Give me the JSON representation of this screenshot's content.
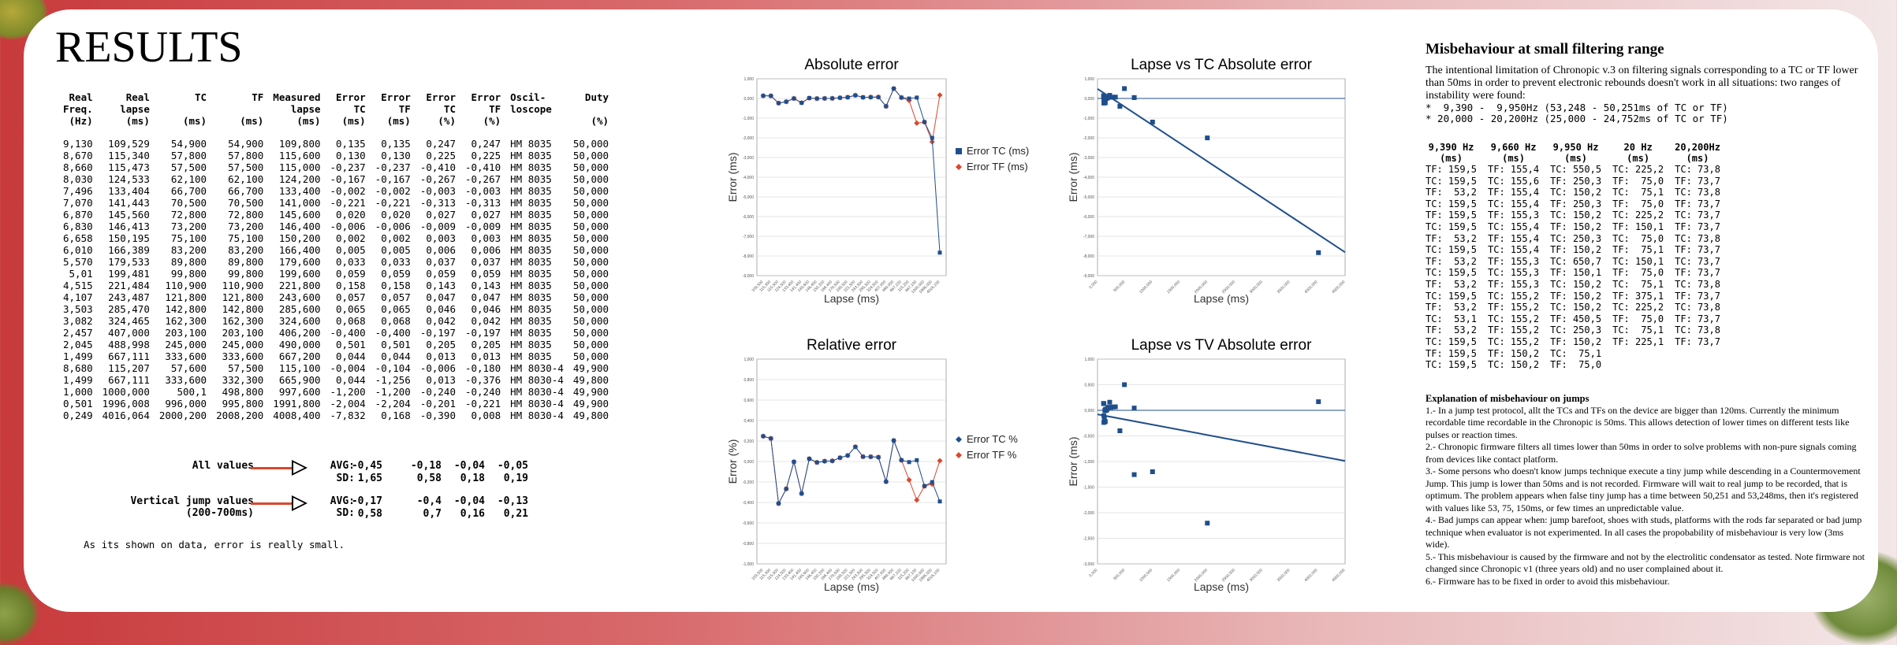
{
  "title": "RESULTS",
  "results": {
    "headers": [
      [
        "Real",
        "Freq.",
        "(Hz)"
      ],
      [
        "Real",
        "lapse",
        "(ms)"
      ],
      [
        "TC",
        "",
        "(ms)"
      ],
      [
        "TF",
        "",
        "(ms)"
      ],
      [
        "Measured",
        "lapse",
        "(ms)"
      ],
      [
        "Error",
        "TC",
        "(ms)"
      ],
      [
        "Error",
        "TF",
        "(ms)"
      ],
      [
        "Error",
        "TC",
        "(%)"
      ],
      [
        "Error",
        "TF",
        "(%)"
      ],
      [
        "Oscil-",
        "loscope",
        ""
      ],
      [
        "Duty",
        "",
        "(%)"
      ]
    ],
    "rows": [
      [
        "9,130",
        "109,529",
        "54,900",
        "54,900",
        "109,800",
        "0,135",
        "0,135",
        "0,247",
        "0,247",
        "HM 8035",
        "50,000"
      ],
      [
        "8,670",
        "115,340",
        "57,800",
        "57,800",
        "115,600",
        "0,130",
        "0,130",
        "0,225",
        "0,225",
        "HM 8035",
        "50,000"
      ],
      [
        "8,660",
        "115,473",
        "57,500",
        "57,500",
        "115,000",
        "-0,237",
        "-0,237",
        "-0,410",
        "-0,410",
        "HM 8035",
        "50,000"
      ],
      [
        "8,030",
        "124,533",
        "62,100",
        "62,100",
        "124,200",
        "-0,167",
        "-0,167",
        "-0,267",
        "-0,267",
        "HM 8035",
        "50,000"
      ],
      [
        "7,496",
        "133,404",
        "66,700",
        "66,700",
        "133,400",
        "-0,002",
        "-0,002",
        "-0,003",
        "-0,003",
        "HM 8035",
        "50,000"
      ],
      [
        "7,070",
        "141,443",
        "70,500",
        "70,500",
        "141,000",
        "-0,221",
        "-0,221",
        "-0,313",
        "-0,313",
        "HM 8035",
        "50,000"
      ],
      [
        "6,870",
        "145,560",
        "72,800",
        "72,800",
        "145,600",
        "0,020",
        "0,020",
        "0,027",
        "0,027",
        "HM 8035",
        "50,000"
      ],
      [
        "6,830",
        "146,413",
        "73,200",
        "73,200",
        "146,400",
        "-0,006",
        "-0,006",
        "-0,009",
        "-0,009",
        "HM 8035",
        "50,000"
      ],
      [
        "6,658",
        "150,195",
        "75,100",
        "75,100",
        "150,200",
        "0,002",
        "0,002",
        "0,003",
        "0,003",
        "HM 8035",
        "50,000"
      ],
      [
        "6,010",
        "166,389",
        "83,200",
        "83,200",
        "166,400",
        "0,005",
        "0,005",
        "0,006",
        "0,006",
        "HM 8035",
        "50,000"
      ],
      [
        "5,570",
        "179,533",
        "89,800",
        "89,800",
        "179,600",
        "0,033",
        "0,033",
        "0,037",
        "0,037",
        "HM 8035",
        "50,000"
      ],
      [
        "5,01",
        "199,481",
        "99,800",
        "99,800",
        "199,600",
        "0,059",
        "0,059",
        "0,059",
        "0,059",
        "HM 8035",
        "50,000"
      ],
      [
        "4,515",
        "221,484",
        "110,900",
        "110,900",
        "221,800",
        "0,158",
        "0,158",
        "0,143",
        "0,143",
        "HM 8035",
        "50,000"
      ],
      [
        "4,107",
        "243,487",
        "121,800",
        "121,800",
        "243,600",
        "0,057",
        "0,057",
        "0,047",
        "0,047",
        "HM 8035",
        "50,000"
      ],
      [
        "3,503",
        "285,470",
        "142,800",
        "142,800",
        "285,600",
        "0,065",
        "0,065",
        "0,046",
        "0,046",
        "HM 8035",
        "50,000"
      ],
      [
        "3,082",
        "324,465",
        "162,300",
        "162,300",
        "324,600",
        "0,068",
        "0,068",
        "0,042",
        "0,042",
        "HM 8035",
        "50,000"
      ],
      [
        "2,457",
        "407,000",
        "203,100",
        "203,100",
        "406,200",
        "-0,400",
        "-0,400",
        "-0,197",
        "-0,197",
        "HM 8035",
        "50,000"
      ],
      [
        "2,045",
        "488,998",
        "245,000",
        "245,000",
        "490,000",
        "0,501",
        "0,501",
        "0,205",
        "0,205",
        "HM 8035",
        "50,000"
      ],
      [
        "1,499",
        "667,111",
        "333,600",
        "333,600",
        "667,200",
        "0,044",
        "0,044",
        "0,013",
        "0,013",
        "HM 8035",
        "50,000"
      ],
      [
        "8,680",
        "115,207",
        "57,600",
        "57,500",
        "115,100",
        "-0,004",
        "-0,104",
        "-0,006",
        "-0,180",
        "HM 8030-4",
        "49,900"
      ],
      [
        "1,499",
        "667,111",
        "333,600",
        "332,300",
        "665,900",
        "0,044",
        "-1,256",
        "0,013",
        "-0,376",
        "HM 8030-4",
        "49,800"
      ],
      [
        "1,000",
        "1000,000",
        "500,1",
        "498,800",
        "997,600",
        "-1,200",
        "-1,200",
        "-0,240",
        "-0,240",
        "HM 8030-4",
        "49,900"
      ],
      [
        "0,501",
        "1996,008",
        "996,000",
        "995,800",
        "1991,800",
        "-2,004",
        "-2,204",
        "-0,201",
        "-0,221",
        "HM 8030-4",
        "49,900"
      ],
      [
        "0,249",
        "4016,064",
        "2000,200",
        "2008,200",
        "4008,400",
        "-7,832",
        "0,168",
        "-0,390",
        "0,008",
        "HM 8030-4",
        "49,800"
      ]
    ]
  },
  "stats": {
    "all_label": "All values",
    "vert_label_1": "Vertical jump values",
    "vert_label_2": "(200-700ms)",
    "avg": "AVG:",
    "sd": "SD:",
    "all_avg": [
      "-0,45",
      "-0,18",
      "-0,04",
      "-0,05"
    ],
    "all_sd": [
      "1,65",
      "0,58",
      "0,18",
      "0,19"
    ],
    "vert_avg": [
      "-0,17",
      "-0,4",
      "-0,04",
      "-0,13"
    ],
    "vert_sd": [
      "0,58",
      "0,7",
      "0,16",
      "0,21"
    ]
  },
  "note": "As its shown on data, error is really small.",
  "chart_data": [
    {
      "type": "line",
      "title": "Absolute error",
      "xlabel": "Lapse (ms)",
      "ylabel": "Error (ms)",
      "ylim": [
        -9,
        1
      ],
      "x": [
        109.5,
        115.3,
        115.5,
        124.5,
        133.4,
        141.4,
        145.6,
        146.4,
        150.2,
        166.4,
        179.5,
        199.5,
        221.5,
        243.5,
        285.5,
        324.5,
        407,
        489,
        667.1,
        115.2,
        667.1,
        1000,
        1996,
        4016.1
      ],
      "series": [
        {
          "name": "Error TC (ms)",
          "values": [
            0.135,
            0.13,
            -0.237,
            -0.167,
            -0.002,
            -0.221,
            0.02,
            -0.006,
            0.002,
            0.005,
            0.033,
            0.059,
            0.158,
            0.057,
            0.065,
            0.068,
            -0.4,
            0.501,
            0.044,
            -0.004,
            0.044,
            -1.2,
            -2.004,
            -7.832
          ]
        },
        {
          "name": "Error TF (ms)",
          "values": [
            0.135,
            0.13,
            -0.237,
            -0.167,
            -0.002,
            -0.221,
            0.02,
            -0.006,
            0.002,
            0.005,
            0.033,
            0.059,
            0.158,
            0.057,
            0.065,
            0.068,
            -0.4,
            0.501,
            0.044,
            -0.104,
            -1.256,
            -1.2,
            -2.204,
            0.168
          ]
        }
      ],
      "colors": {
        "tc": "#1f4e8c",
        "tf": "#d9482f"
      }
    },
    {
      "type": "line",
      "title": "Relative error",
      "xlabel": "Lapse (ms)",
      "ylabel": "Error (%)",
      "ylim": [
        -1,
        1
      ],
      "x": [
        109.5,
        115.3,
        115.5,
        124.5,
        133.4,
        141.4,
        145.6,
        146.4,
        150.2,
        166.4,
        179.5,
        199.5,
        221.5,
        243.5,
        285.5,
        324.5,
        407,
        489,
        667.1,
        115.2,
        667.1,
        1000,
        1996,
        4016.1
      ],
      "series": [
        {
          "name": "Error TC %",
          "values": [
            0.247,
            0.225,
            -0.41,
            -0.267,
            -0.003,
            -0.313,
            0.027,
            -0.009,
            0.003,
            0.006,
            0.037,
            0.059,
            0.143,
            0.047,
            0.046,
            0.042,
            -0.197,
            0.205,
            0.013,
            -0.006,
            0.013,
            -0.24,
            -0.201,
            -0.39
          ]
        },
        {
          "name": "Error TF %",
          "values": [
            0.247,
            0.225,
            -0.41,
            -0.267,
            -0.003,
            -0.313,
            0.027,
            -0.009,
            0.003,
            0.006,
            0.037,
            0.059,
            0.143,
            0.047,
            0.046,
            0.042,
            -0.197,
            0.205,
            0.013,
            -0.18,
            -0.376,
            -0.24,
            -0.221,
            0.008
          ]
        }
      ],
      "colors": {
        "tc": "#1f4e8c",
        "tf": "#d9482f"
      }
    },
    {
      "type": "scatter",
      "title": "Lapse vs TC Absolute error",
      "xlabel": "Lapse (ms)",
      "ylabel": "Error (ms)",
      "xlim": [
        0,
        4500
      ],
      "ylim": [
        -9,
        1
      ],
      "x": [
        109.5,
        115.3,
        115.5,
        124.5,
        133.4,
        141.4,
        145.6,
        146.4,
        150.2,
        166.4,
        179.5,
        199.5,
        221.5,
        243.5,
        285.5,
        324.5,
        407,
        489,
        667.1,
        115.2,
        667.1,
        1000,
        1996,
        4016.1
      ],
      "values": [
        0.135,
        0.13,
        -0.237,
        -0.167,
        -0.002,
        -0.221,
        0.02,
        -0.006,
        0.002,
        0.005,
        0.033,
        0.059,
        0.158,
        0.057,
        0.065,
        0.068,
        -0.4,
        0.501,
        0.044,
        -0.004,
        0.044,
        -1.2,
        -2.004,
        -7.832
      ],
      "color": "#1f4e8c"
    },
    {
      "type": "scatter",
      "title": "Lapse vs TV Absolute error",
      "xlabel": "Lapse (ms)",
      "ylabel": "Error (ms)",
      "xlim": [
        0,
        4500
      ],
      "ylim": [
        -3,
        1
      ],
      "x": [
        109.5,
        115.3,
        115.5,
        124.5,
        133.4,
        141.4,
        145.6,
        146.4,
        150.2,
        166.4,
        179.5,
        199.5,
        221.5,
        243.5,
        285.5,
        324.5,
        407,
        489,
        667.1,
        115.2,
        667.1,
        1000,
        1996,
        4016.1
      ],
      "values": [
        0.135,
        0.13,
        -0.237,
        -0.167,
        -0.002,
        -0.221,
        0.02,
        -0.006,
        0.002,
        0.005,
        0.033,
        0.059,
        0.158,
        0.057,
        0.065,
        0.068,
        -0.4,
        0.501,
        0.044,
        -0.104,
        -1.256,
        -1.2,
        -2.204,
        0.168
      ],
      "color": "#1f4e8c"
    }
  ],
  "misbehaviour": {
    "heading": "Misbehaviour at small filtering range",
    "intro": "The intentional limitation of Chronopic v.3 on filtering signals corresponding to a TC or TF lower than 50ms in order to prevent electronic rebounds doesn't work in all situations: two ranges of instability were found:",
    "ranges": "*  9,390 -  9,950Hz (53,248 - 50,251ms of TC or TF)\n* 20,000 - 20,200Hz (25,000 - 24,752ms of TC or TF)",
    "columns": [
      {
        "head": "9,390 Hz\n(ms)",
        "cells": [
          "TF: 159,5",
          "TC: 159,5",
          "TF:  53,2",
          "TC: 159,5",
          "TF: 159,5",
          "TC: 159,5",
          "TF:  53,2",
          "TC: 159,5",
          "TF:  53,2",
          "TC: 159,5",
          "TF:  53,2",
          "TC: 159,5",
          "TF:  53,2",
          "TC:  53,1",
          "TF:  53,2",
          "TC: 159,5",
          "TF: 159,5",
          "TC: 159,5"
        ]
      },
      {
        "head": "9,660 Hz\n(ms)",
        "cells": [
          "TF: 155,4",
          "TC: 155,6",
          "TF: 155,4",
          "TC: 155,4",
          "TF: 155,3",
          "TC: 155,4",
          "TF: 155,4",
          "TC: 155,4",
          "TF: 155,3",
          "TC: 155,3",
          "TF: 155,3",
          "TC: 155,2",
          "TF: 155,2",
          "TC: 155,2",
          "TF: 155,2",
          "TC: 155,2",
          "TF: 150,2",
          "TC: 150,2"
        ]
      },
      {
        "head": "9,950 Hz\n(ms)",
        "cells": [
          "TC: 550,5",
          "TF: 250,3",
          "TC: 150,2",
          "TF: 250,3",
          "TC: 150,2",
          "TF: 150,2",
          "TC: 250,3",
          "TF: 150,2",
          "TC: 650,7",
          "TF: 150,1",
          "TC: 150,2",
          "TF: 150,2",
          "TC: 150,2",
          "TF: 450,5",
          "TC: 250,3",
          "TF: 150,2",
          "TC:  75,1",
          "TF:  75,0"
        ]
      },
      {
        "head": "20 Hz\n(ms)",
        "cells": [
          "TC: 225,2",
          "TF:  75,0",
          "TC:  75,1",
          "TF:  75,0",
          "TC: 225,2",
          "TF: 150,1",
          "TC:  75,0",
          "TF:  75,1",
          "TC: 150,1",
          "TF:  75,0",
          "TC:  75,1",
          "TF: 375,1",
          "TC: 225,2",
          "TF:  75,0",
          "TC:  75,1",
          "TF: 225,1",
          "",
          ""
        ]
      },
      {
        "head": "20,200Hz\n(ms)",
        "cells": [
          "TC: 73,8",
          "TF: 73,7",
          "TC: 73,8",
          "TF: 73,7",
          "TC: 73,7",
          "TF: 73,7",
          "TC: 73,8",
          "TF: 73,7",
          "TC: 73,7",
          "TF: 73,7",
          "TC: 73,8",
          "TF: 73,7",
          "TC: 73,8",
          "TF: 73,7",
          "TC: 73,8",
          "TF: 73,7",
          "",
          ""
        ]
      }
    ],
    "expl_heading": "Explanation of misbehaviour on jumps",
    "expl": [
      "1.- In a jump test protocol, allt the TCs and TFs on the device are bigger than 120ms. Currently the minimum recordable time recordable in the Chronopic is 50ms. This allows detection of lower times on different tests like pulses or reaction times.",
      "2.- Chronopic firmware filters all times lower than 50ms in order to solve problems with non-pure signals coming from devices like contact platform.",
      "3.- Some persons who doesn't know jumps technique execute a tiny jump while descending in a Countermovement Jump. This jump is lower than 50ms and is not recorded. Firmware will wait to real jump to be recorded, that is optimum. The problem appears when false tiny jump has a time between 50,251 and 53,248ms, then it's registered with values like 53, 75, 150ms, or few times an unpredictable value.",
      "4.- Bad jumps can appear when: jump barefoot, shoes with studs, platforms with the rods far separated or bad jump technique when evaluator is not experimented. In all cases the propobability of misbehaviour is very low (3ms wide).",
      "5.- This misbehaviour is caused by the firmware and not by the electrolitic condensator as tested. Note firmware not changed since Chronopic v1 (three years old) and no user complained about it.",
      "6.- Firmware has to be fixed in order to avoid this misbehaviour."
    ]
  }
}
